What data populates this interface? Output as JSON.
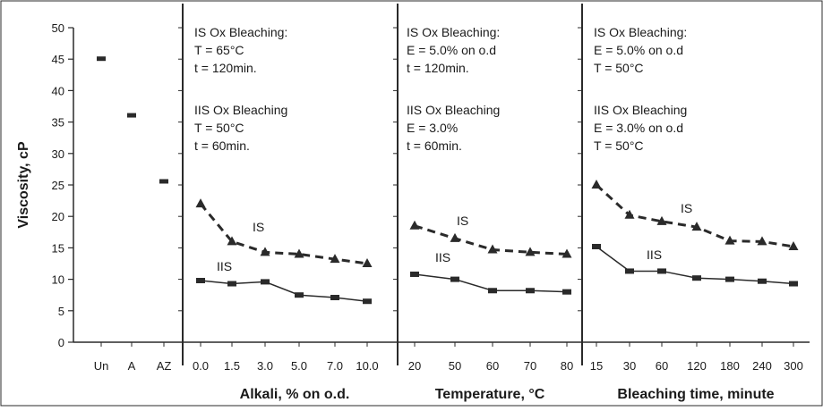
{
  "chart_data": {
    "type": "line",
    "ylabel": "Viscosity, cP",
    "ylim": [
      0,
      50
    ],
    "yticks": [
      0,
      5,
      10,
      15,
      20,
      25,
      30,
      35,
      40,
      45,
      50
    ],
    "grid": false,
    "legend": "none",
    "colors": {
      "line": "#2a2a2a",
      "frame": "#2a2a2a",
      "text": "#1a1a1a"
    },
    "reference": {
      "categories": [
        "Un",
        "A",
        "AZ"
      ],
      "values": [
        45,
        36,
        25.5
      ]
    },
    "panels": [
      {
        "xlabel": "Alkali, % on o.d.",
        "categories": [
          "0.0",
          "1.5",
          "3.0",
          "5.0",
          "7.0",
          "10.0"
        ],
        "annotation": [
          "IS Ox Bleaching:",
          "T = 65°C",
          "t = 120min.",
          "",
          "IIS Ox Bleaching",
          "T = 50°C",
          "t = 60min."
        ],
        "series": [
          {
            "name": "IS",
            "values": [
              22,
              16,
              14.3,
              14,
              13.2,
              12.5
            ]
          },
          {
            "name": "IIS",
            "values": [
              9.8,
              9.3,
              9.6,
              7.5,
              7.1,
              6.5
            ]
          }
        ]
      },
      {
        "xlabel": "Temperature, °C",
        "categories": [
          "20",
          "50",
          "60",
          "70",
          "80"
        ],
        "annotation": [
          "IS Ox Bleaching:",
          "E = 5.0% on o.d",
          "t = 120min.",
          "",
          "IIS Ox Bleaching",
          "E = 3.0%",
          "t = 60min."
        ],
        "series": [
          {
            "name": "IS",
            "values": [
              18.5,
              16.5,
              14.7,
              14.3,
              14
            ]
          },
          {
            "name": "IIS",
            "values": [
              10.8,
              10,
              8.2,
              8.2,
              8
            ]
          }
        ]
      },
      {
        "xlabel": "Bleaching time, minute",
        "categories": [
          "15",
          "30",
          "60",
          "120",
          "180",
          "240",
          "300"
        ],
        "annotation": [
          "IS Ox Bleaching:",
          "E = 5.0% on o.d",
          "T = 50°C",
          "",
          "IIS Ox Bleaching",
          "E = 3.0% on o.d",
          "T = 50°C"
        ],
        "series": [
          {
            "name": "IS",
            "values": [
              25,
              20.2,
              19.2,
              18.3,
              16.1,
              16,
              15.2
            ]
          },
          {
            "name": "IIS",
            "values": [
              15.2,
              11.3,
              11.3,
              10.2,
              10,
              9.7,
              9.3
            ]
          }
        ]
      }
    ]
  }
}
